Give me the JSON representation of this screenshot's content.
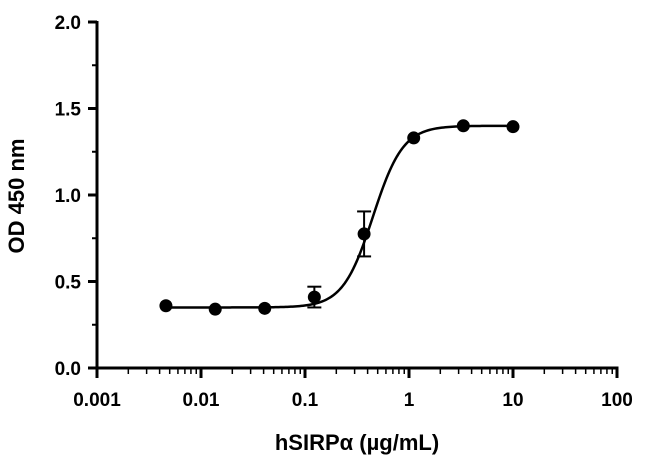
{
  "chart_data": {
    "type": "scatter",
    "title": "",
    "xlabel": "hSIRPα (µg/mL)",
    "ylabel": "OD 450 nm",
    "x_scale": "log",
    "xlim": [
      0.001,
      100
    ],
    "ylim": [
      0,
      2.0
    ],
    "x_ticks": [
      0.001,
      0.01,
      0.1,
      1,
      10,
      100
    ],
    "x_tick_labels": [
      "0.001",
      "0.01",
      "0.1",
      "1",
      "10",
      "100"
    ],
    "y_ticks": [
      0,
      0.5,
      1.0,
      1.5,
      2.0
    ],
    "y_tick_labels": [
      "0.0",
      "0.5",
      "1.0",
      "1.5",
      "2.0"
    ],
    "grid": false,
    "legend": "none",
    "colors": {
      "marker": "#000000",
      "line": "#000000",
      "axis": "#000000"
    },
    "series": [
      {
        "x": [
          0.0046,
          0.0137,
          0.041,
          0.123,
          0.37,
          1.11,
          3.33,
          10
        ],
        "y": [
          0.36,
          0.34,
          0.345,
          0.41,
          0.775,
          1.33,
          1.4,
          1.395
        ],
        "error": [
          0,
          0,
          0,
          0.06,
          0.13,
          0,
          0,
          0
        ],
        "fit": {
          "bottom": 0.35,
          "top": 1.4,
          "ec50": 0.45,
          "hill": 3.0
        }
      }
    ]
  }
}
